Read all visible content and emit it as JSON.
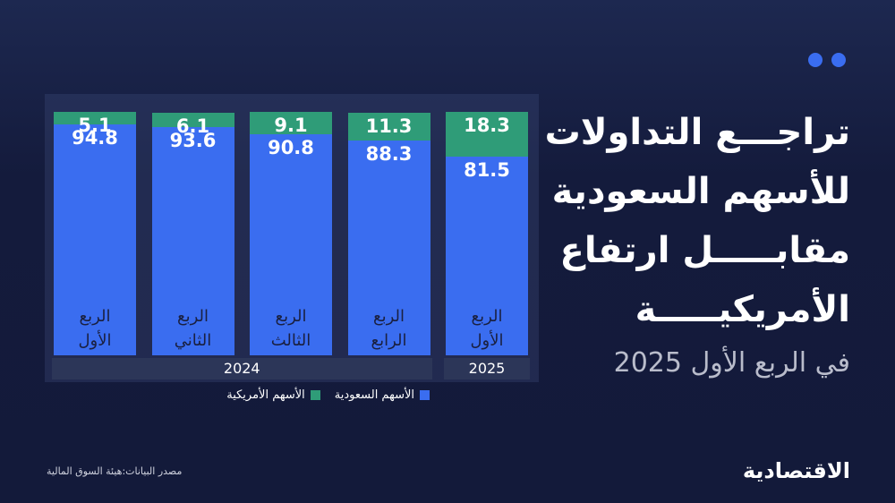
{
  "chart_data": {
    "type": "stacked_bar",
    "title": [
      "تراجـــع التداولات",
      "للأسهم السعودية",
      "مقابـــــل ارتفاع",
      "الأمريكيـــــة"
    ],
    "subtitle": "في الربع الأول 2025",
    "unit": "%",
    "categories": [
      {
        "label": "الربع الأول",
        "year": "2024"
      },
      {
        "label": "الربع الثاني",
        "year": "2024"
      },
      {
        "label": "الربع الثالث",
        "year": "2024"
      },
      {
        "label": "الربع الرابع",
        "year": "2024"
      },
      {
        "label": "الربع الأول",
        "year": "2025"
      }
    ],
    "series": [
      {
        "name": "الأسهم السعودية",
        "color": "#3a6df0",
        "values": [
          94.8,
          93.6,
          90.8,
          88.3,
          81.5
        ]
      },
      {
        "name": "الأسهم الأمريكية",
        "color": "#2f9c78",
        "values": [
          5.1,
          6.1,
          9.1,
          11.3,
          18.3
        ]
      }
    ],
    "source": "مصدر البيانات:هيئة السوق المالية",
    "brand": "الاقتصادية"
  }
}
